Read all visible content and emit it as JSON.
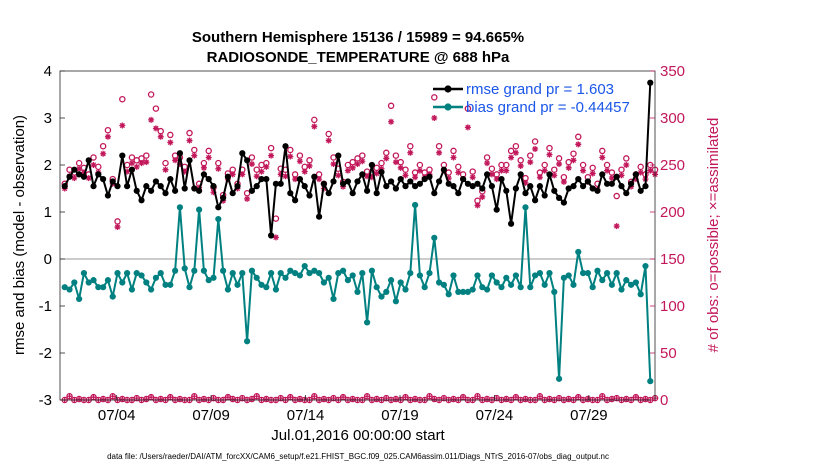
{
  "chart_data": {
    "type": "line",
    "title_line1": "Southern Hemisphere 15136 / 15989 = 94.665%",
    "title_line2": "RADIOSONDE_TEMPERATURE @ 688 hPa",
    "xlabel": "Jul.01,2016 00:00:00 start",
    "ylabel": "rmse and bias (model - observation)",
    "ylabel_right": "# of obs: o=possible; ×=assimilated",
    "footer": "data file: /Users/raeder/DAI/ATM_forcXX/CAM6_setup/f.e21.FHIST_BGC.f09_025.CAM6assim.011/Diags_NTrS_2016-07/obs_diag_output.nc",
    "ylim": [
      -3,
      4
    ],
    "yticks": [
      -3,
      -2,
      -1,
      0,
      1,
      2,
      3,
      4
    ],
    "ylim_right": [
      0,
      350
    ],
    "yticks_right": [
      0,
      50,
      100,
      150,
      200,
      250,
      300,
      350
    ],
    "xlim": [
      0,
      31.5
    ],
    "xticks": [
      {
        "value": 3,
        "label": "07/04"
      },
      {
        "value": 8,
        "label": "07/09"
      },
      {
        "value": 13,
        "label": "07/14"
      },
      {
        "value": 18,
        "label": "07/19"
      },
      {
        "value": 23,
        "label": "07/24"
      },
      {
        "value": 28,
        "label": "07/29"
      }
    ],
    "legend": [
      {
        "label": "rmse grand pr = 1.603",
        "color": "#000000",
        "text_color": "#1a56e8"
      },
      {
        "label": "bias grand pr = -0.44457",
        "color": "#008080",
        "text_color": "#1a56e8"
      }
    ],
    "colors": {
      "rmse": "#000000",
      "bias": "#008080",
      "obs": "#c2185b",
      "zero_line": "#999999"
    },
    "series": [
      {
        "name": "rmse",
        "values": [
          1.55,
          1.75,
          1.9,
          1.8,
          1.75,
          2.1,
          1.55,
          1.8,
          1.7,
          1.35,
          1.65,
          1.55,
          2.2,
          1.55,
          1.9,
          1.45,
          1.25,
          1.55,
          1.45,
          1.65,
          1.55,
          1.4,
          1.7,
          1.45,
          2.25,
          1.5,
          2.1,
          1.5,
          1.45,
          1.8,
          1.7,
          1.55,
          1.1,
          1.3,
          1.75,
          1.4,
          1.55,
          2.25,
          2.1,
          1.45,
          1.55,
          1.7,
          1.7,
          0.5,
          1.6,
          1.6,
          2.4,
          1.4,
          1.25,
          1.7,
          1.55,
          1.35,
          1.75,
          0.9,
          1.6,
          1.4,
          1.65,
          2.2,
          1.6,
          1.65,
          1.4,
          1.65,
          1.8,
          1.45,
          2.0,
          1.4,
          1.85,
          1.55,
          1.65,
          1.5,
          1.7,
          1.55,
          1.65,
          1.55,
          1.6,
          1.7,
          1.75,
          1.4,
          1.65,
          1.9,
          1.6,
          1.55,
          1.4,
          1.7,
          1.6,
          1.55,
          1.6,
          1.5,
          1.8,
          1.55,
          1.05,
          1.7,
          1.45,
          0.75,
          1.5,
          1.8,
          1.4,
          1.55,
          1.25,
          1.55,
          1.35,
          1.8,
          1.45,
          1.3,
          1.2,
          1.5,
          1.55,
          1.7,
          1.55,
          1.65,
          1.5,
          1.45,
          1.8,
          1.6,
          1.6,
          1.75,
          1.55,
          1.4,
          1.6,
          1.8,
          1.45,
          1.55,
          3.75
        ]
      },
      {
        "name": "bias",
        "values": [
          -0.6,
          -0.65,
          -0.5,
          -0.85,
          -0.3,
          -0.5,
          -0.45,
          -0.6,
          -0.6,
          -0.45,
          -0.8,
          -0.3,
          -0.5,
          -0.3,
          -0.65,
          -0.3,
          -0.35,
          -0.5,
          -0.65,
          -0.4,
          -0.3,
          -0.55,
          -0.55,
          -0.25,
          1.1,
          -0.2,
          -0.6,
          -0.25,
          1.05,
          -0.25,
          -0.45,
          -0.4,
          0.85,
          -0.25,
          -0.65,
          -0.3,
          -0.55,
          -0.3,
          -1.75,
          -0.25,
          -0.4,
          -0.55,
          -0.6,
          -0.3,
          -0.65,
          -0.3,
          -0.4,
          -0.25,
          -0.3,
          -0.35,
          -0.15,
          -0.3,
          -0.25,
          -0.3,
          -0.5,
          -0.4,
          -0.85,
          -0.3,
          -0.25,
          -0.45,
          -0.35,
          -0.7,
          -0.3,
          -1.35,
          -0.25,
          -0.6,
          -0.8,
          -0.7,
          -0.45,
          -0.9,
          -0.5,
          -0.65,
          -0.3,
          1.15,
          -0.35,
          -0.6,
          -0.3,
          0.45,
          -0.5,
          -0.55,
          -0.75,
          -0.35,
          -0.7,
          -0.7,
          -0.7,
          -0.65,
          -0.35,
          -0.6,
          -0.65,
          -0.35,
          -0.5,
          -0.6,
          -0.4,
          -0.55,
          -0.35,
          -0.6,
          1.1,
          -0.6,
          -0.35,
          -0.3,
          -0.55,
          -0.3,
          -0.7,
          -2.55,
          -0.4,
          -0.35,
          -0.55,
          0.15,
          -0.3,
          -0.3,
          -0.6,
          -0.25,
          -0.45,
          -0.3,
          -0.55,
          -0.3,
          -0.65,
          -0.45,
          -0.55,
          -0.5,
          -0.75,
          -0.15,
          -2.6
        ]
      },
      {
        "name": "obs_possible",
        "values": [
          230,
          245,
          242,
          252,
          247,
          240,
          258,
          248,
          270,
          287,
          235,
          190,
          320,
          250,
          258,
          255,
          257,
          260,
          325,
          310,
          286,
          252,
          282,
          260,
          258,
          248,
          284,
          266,
          230,
          252,
          265,
          226,
          252,
          218,
          241,
          245,
          230,
          245,
          220,
          258,
          245,
          250,
          252,
          268,
          193,
          246,
          245,
          266,
          240,
          260,
          248,
          255,
          298,
          240,
          230,
          283,
          258,
          246,
          232,
          250,
          253,
          257,
          260,
          243,
          242,
          247,
          252,
          263,
          313,
          260,
          253,
          245,
          270,
          242,
          250,
          242,
          245,
          322,
          270,
          250,
          242,
          265,
          248,
          240,
          310,
          243,
          212,
          222,
          258,
          246,
          240,
          250,
          250,
          265,
          270,
          255,
          236,
          260,
          275,
          242,
          250,
          268,
          245,
          257,
          237,
          253,
          262,
          280,
          250,
          237,
          247,
          230,
          265,
          250,
          242,
          217,
          245,
          257,
          232,
          240,
          248,
          240,
          250,
          245
        ]
      },
      {
        "name": "obs_assimilated",
        "values": [
          225,
          238,
          236,
          246,
          242,
          236,
          250,
          242,
          262,
          280,
          230,
          184,
          292,
          243,
          252,
          248,
          252,
          253,
          298,
          289,
          280,
          245,
          274,
          255,
          251,
          243,
          276,
          260,
          226,
          247,
          258,
          221,
          246,
          212,
          235,
          240,
          225,
          240,
          214,
          251,
          238,
          243,
          248,
          260,
          173,
          240,
          238,
          259,
          235,
          254,
          243,
          249,
          291,
          235,
          225,
          276,
          251,
          239,
          227,
          244,
          247,
          251,
          254,
          238,
          237,
          241,
          246,
          257,
          296,
          253,
          247,
          239,
          263,
          237,
          244,
          237,
          240,
          300,
          263,
          244,
          236,
          258,
          242,
          235,
          290,
          237,
          207,
          216,
          252,
          240,
          235,
          244,
          244,
          258,
          263,
          249,
          231,
          253,
          267,
          237,
          244,
          261,
          239,
          251,
          232,
          247,
          255,
          272,
          244,
          232,
          241,
          224,
          258,
          244,
          236,
          185,
          239,
          250,
          227,
          235,
          242,
          235,
          244,
          240
        ]
      },
      {
        "name": "obs_bottom_markers",
        "values": [
          0,
          4,
          0,
          1,
          0,
          0,
          3,
          0,
          1,
          0,
          4,
          0,
          1,
          0,
          0,
          2,
          0,
          1,
          3,
          0,
          1,
          0,
          3,
          0,
          1,
          0,
          0,
          4,
          0,
          1,
          0,
          2,
          0,
          0,
          3,
          1,
          0,
          2,
          0,
          1,
          4,
          0,
          1,
          0,
          0,
          2,
          0,
          3,
          0,
          1,
          0,
          0,
          4,
          0,
          1,
          0,
          2,
          0,
          3,
          0,
          1,
          0,
          0,
          4,
          0,
          1,
          0,
          2,
          0,
          1,
          0,
          3,
          0,
          1,
          0,
          0,
          4,
          1,
          0,
          2,
          0,
          1,
          0,
          3,
          0,
          0,
          4,
          0,
          1,
          0,
          2,
          0,
          1,
          0,
          3,
          0,
          1,
          0,
          0,
          4,
          0,
          1,
          0,
          2,
          0,
          1,
          0,
          3,
          0,
          1,
          0,
          0,
          4,
          0,
          1,
          2,
          0,
          1,
          0,
          3,
          0,
          1,
          0,
          2
        ]
      }
    ]
  }
}
